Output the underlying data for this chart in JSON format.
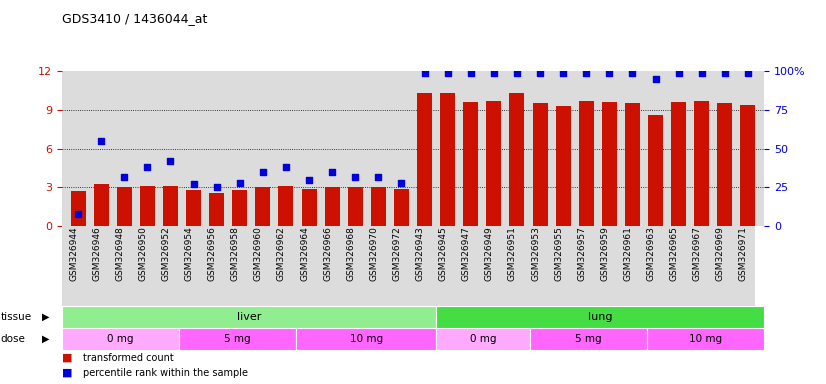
{
  "title": "GDS3410 / 1436044_at",
  "samples": [
    "GSM326944",
    "GSM326946",
    "GSM326948",
    "GSM326950",
    "GSM326952",
    "GSM326954",
    "GSM326956",
    "GSM326958",
    "GSM326960",
    "GSM326962",
    "GSM326964",
    "GSM326966",
    "GSM326968",
    "GSM326970",
    "GSM326972",
    "GSM326943",
    "GSM326945",
    "GSM326947",
    "GSM326949",
    "GSM326951",
    "GSM326953",
    "GSM326955",
    "GSM326957",
    "GSM326959",
    "GSM326961",
    "GSM326963",
    "GSM326965",
    "GSM326967",
    "GSM326969",
    "GSM326971"
  ],
  "red_bars": [
    2.7,
    3.3,
    3.0,
    3.1,
    3.1,
    2.8,
    2.6,
    2.8,
    3.0,
    3.1,
    2.85,
    3.05,
    3.0,
    3.0,
    2.9,
    10.3,
    10.3,
    9.6,
    9.7,
    10.3,
    9.5,
    9.3,
    9.7,
    9.65,
    9.55,
    8.6,
    9.65,
    9.7,
    9.5,
    9.4
  ],
  "blue_dots": [
    8,
    55,
    32,
    38,
    42,
    27,
    25,
    28,
    35,
    38,
    30,
    35,
    32,
    32,
    28,
    99,
    99,
    99,
    99,
    99,
    99,
    99,
    99,
    99,
    99,
    95,
    99,
    99,
    99,
    99
  ],
  "ylim_left": [
    0,
    12
  ],
  "ylim_right": [
    0,
    100
  ],
  "yticks_left": [
    0,
    3,
    6,
    9,
    12
  ],
  "yticks_right": [
    0,
    25,
    50,
    75,
    100
  ],
  "bar_color": "#CC1100",
  "dot_color": "#0000DD",
  "bg_color": "#DCDCDC",
  "legend_red": "transformed count",
  "legend_blue": "percentile rank within the sample",
  "liver_color": "#90EE90",
  "lung_color": "#44DD44",
  "dose0_color": "#FFAAFF",
  "dose5_color": "#FF66FF",
  "dose10_color": "#FF66FF",
  "gridline_color": "#555555"
}
